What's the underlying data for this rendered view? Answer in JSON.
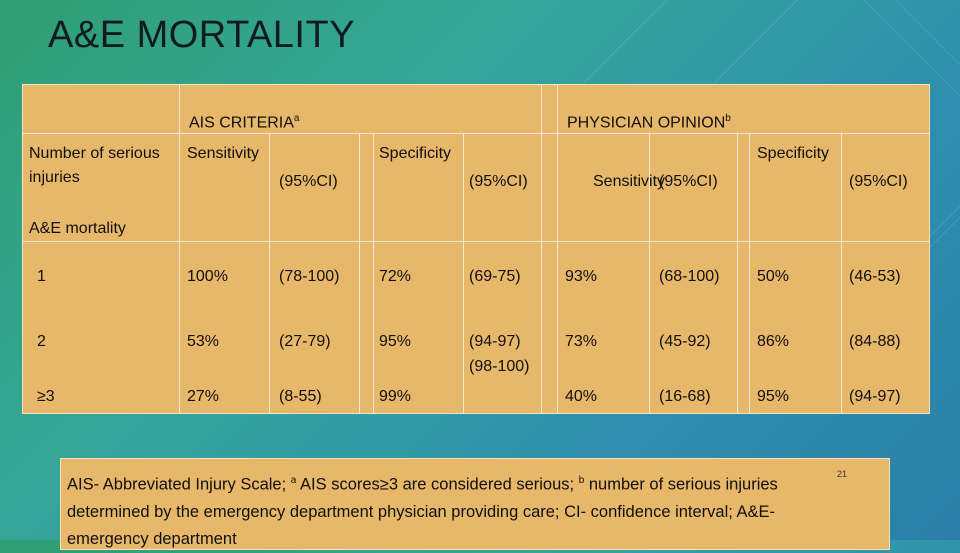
{
  "title": "A&E MORTALITY",
  "groups": {
    "ais": {
      "label": "AIS CRITERIA",
      "sup": "a"
    },
    "physician": {
      "label": "PHYSICIAN OPINION",
      "sup": "b"
    }
  },
  "row_header": "Number of serious injuries",
  "columns": {
    "ais_sens": "Sensitivity",
    "ais_sens_ci": "(95%CI)",
    "ais_spec": "Specificity",
    "ais_spec_ci": "(95%CI)",
    "phys_sens": "Sensitivity",
    "phys_sens_ci": "(95%CI)",
    "phys_spec": "Specificity",
    "phys_spec_ci": "(95%CI)"
  },
  "section_label": "A&E mortality",
  "rows": [
    {
      "n": "1",
      "ais_sens": "100%",
      "ais_sens_ci": "(78-100)",
      "ais_spec": "72%",
      "ais_spec_ci": "(69-75)",
      "phys_sens": "93%",
      "phys_sens_ci": "(68-100)",
      "phys_spec": "50%",
      "phys_spec_ci": "(46-53)"
    },
    {
      "n": "2",
      "ais_sens": "53%",
      "ais_sens_ci": "(27-79)",
      "ais_spec": "95%",
      "ais_spec_ci": "(94-97)",
      "phys_sens": "73%",
      "phys_sens_ci": "(45-92)",
      "phys_spec": "86%",
      "phys_spec_ci": "(84-88)"
    },
    {
      "n": "≥3",
      "ais_sens": "27%",
      "ais_sens_ci": "(8-55)",
      "ais_spec": "99%",
      "ais_spec_ci": "(98-100)",
      "phys_sens": "40%",
      "phys_sens_ci": "(16-68)",
      "phys_spec": "95%",
      "phys_spec_ci": "(94-97)"
    }
  ],
  "footnote": {
    "part1": "AIS- Abbreviated Injury Scale; ",
    "sup_a": "a",
    "part2": " AIS scores≥3 are considered serious; ",
    "sup_b": "b",
    "part3": " number of serious injuries determined by the emergency department physician providing care; CI- confidence interval; A&E- emergency department"
  },
  "page_number": "21"
}
